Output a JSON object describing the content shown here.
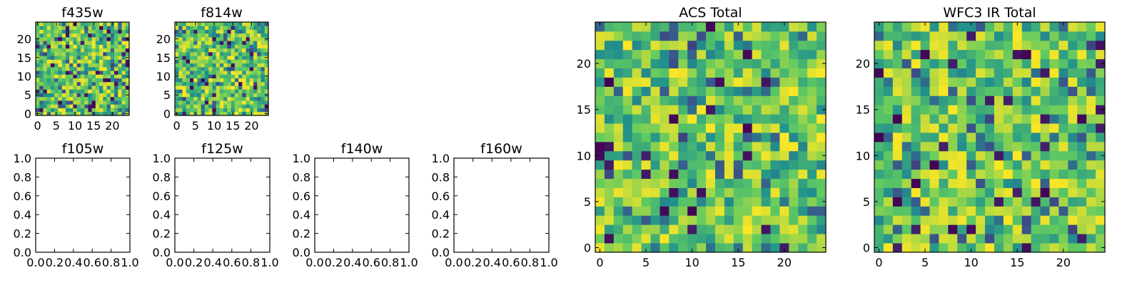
{
  "figure": {
    "colormap": "viridis",
    "colormap_stops": [
      "#440154",
      "#3b528b",
      "#21918c",
      "#5ec962",
      "#fde725"
    ]
  },
  "chart_data": [
    {
      "id": "f435w",
      "type": "heatmap",
      "title": "f435w",
      "grid_size": 25,
      "xlim": [
        -0.5,
        24.5
      ],
      "ylim": [
        -0.5,
        24.5
      ],
      "xticks": [
        "0",
        "5",
        "10",
        "15",
        "20"
      ],
      "yticks": [
        "0",
        "5",
        "10",
        "15",
        "20"
      ],
      "values": "random noise 25x25 image (values in arbitrary units, mostly mid-high)"
    },
    {
      "id": "f814w",
      "type": "heatmap",
      "title": "f814w",
      "grid_size": 25,
      "xlim": [
        -0.5,
        24.5
      ],
      "ylim": [
        -0.5,
        24.5
      ],
      "xticks": [
        "0",
        "5",
        "10",
        "15",
        "20"
      ],
      "yticks": [
        "0",
        "5",
        "10",
        "15",
        "20"
      ],
      "values": "random noise 25x25 image (values in arbitrary units, mostly mid-high)"
    },
    {
      "id": "f105w",
      "type": "heatmap",
      "title": "f105w",
      "empty": true,
      "xlim": [
        0.0,
        1.0
      ],
      "ylim": [
        0.0,
        1.0
      ],
      "xticks": [
        "0.0",
        "0.2",
        "0.4",
        "0.6",
        "0.8",
        "1.0"
      ],
      "yticks": [
        "0.0",
        "0.2",
        "0.4",
        "0.6",
        "0.8",
        "1.0"
      ]
    },
    {
      "id": "f125w",
      "type": "heatmap",
      "title": "f125w",
      "empty": true,
      "xlim": [
        0.0,
        1.0
      ],
      "ylim": [
        0.0,
        1.0
      ],
      "xticks": [
        "0.0",
        "0.2",
        "0.4",
        "0.6",
        "0.8",
        "1.0"
      ],
      "yticks": [
        "0.0",
        "0.2",
        "0.4",
        "0.6",
        "0.8",
        "1.0"
      ]
    },
    {
      "id": "f140w",
      "type": "heatmap",
      "title": "f140w",
      "empty": true,
      "xlim": [
        0.0,
        1.0
      ],
      "ylim": [
        0.0,
        1.0
      ],
      "xticks": [
        "0.0",
        "0.2",
        "0.4",
        "0.6",
        "0.8",
        "1.0"
      ],
      "yticks": [
        "0.0",
        "0.2",
        "0.4",
        "0.6",
        "0.8",
        "1.0"
      ]
    },
    {
      "id": "f160w",
      "type": "heatmap",
      "title": "f160w",
      "empty": true,
      "xlim": [
        0.0,
        1.0
      ],
      "ylim": [
        0.0,
        1.0
      ],
      "xticks": [
        "0.0",
        "0.2",
        "0.4",
        "0.6",
        "0.8",
        "1.0"
      ],
      "yticks": [
        "0.0",
        "0.2",
        "0.4",
        "0.6",
        "0.8",
        "1.0"
      ]
    },
    {
      "id": "acs_total",
      "type": "heatmap",
      "title": "ACS Total",
      "grid_size": 25,
      "xlim": [
        -0.5,
        24.5
      ],
      "ylim": [
        -0.5,
        24.5
      ],
      "xticks": [
        "0",
        "5",
        "10",
        "15",
        "20"
      ],
      "yticks": [
        "0",
        "5",
        "10",
        "15",
        "20"
      ],
      "values": "random noise 25x25 image (values in arbitrary units, mostly mid-high)"
    },
    {
      "id": "wfc3_ir_total",
      "type": "heatmap",
      "title": "WFC3 IR Total",
      "grid_size": 25,
      "xlim": [
        -0.5,
        24.5
      ],
      "ylim": [
        -0.5,
        24.5
      ],
      "xticks": [
        "0",
        "5",
        "10",
        "15",
        "20"
      ],
      "yticks": [
        "0",
        "5",
        "10",
        "15",
        "20"
      ],
      "values": "random noise 25x25 image (values in arbitrary units, mostly mid-high)"
    }
  ]
}
